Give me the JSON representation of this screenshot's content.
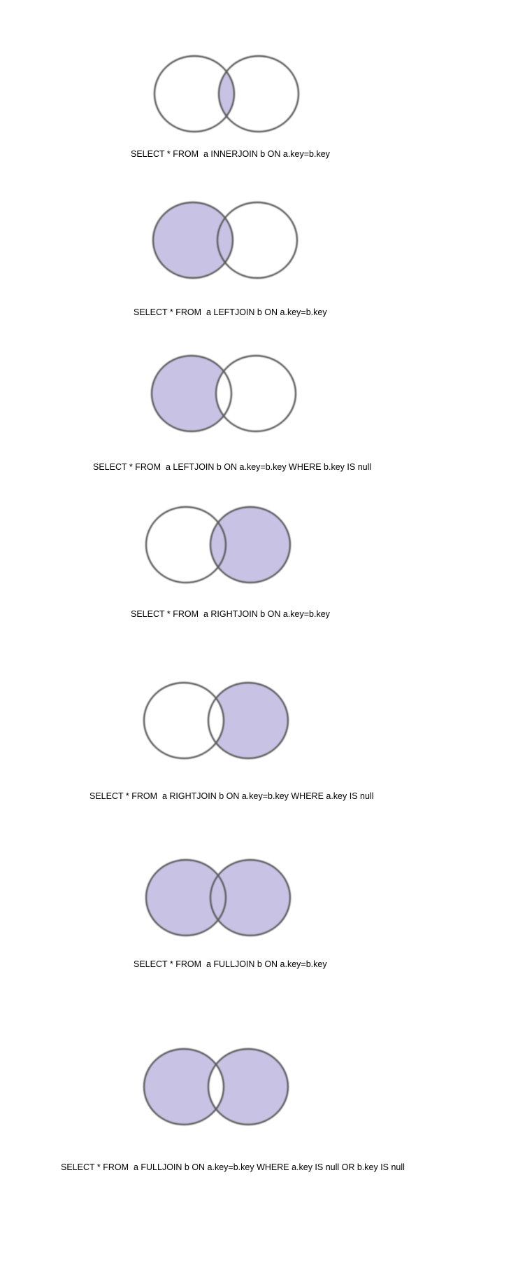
{
  "colors": {
    "fill": "#c8c3e5",
    "stroke": "#5a5a5a",
    "background": "#ffffff"
  },
  "diagrams": [
    {
      "caption": "SELECT * FROM  a INNERJOIN b ON a.key=b.key",
      "shaded": {
        "a_only": false,
        "overlap": true,
        "b_only": false
      }
    },
    {
      "caption": "SELECT * FROM  a LEFTJOIN b ON a.key=b.key",
      "shaded": {
        "a_only": true,
        "overlap": true,
        "b_only": false
      }
    },
    {
      "caption": "SELECT * FROM  a LEFTJOIN b ON a.key=b.key WHERE b.key IS null",
      "shaded": {
        "a_only": true,
        "overlap": false,
        "b_only": false
      }
    },
    {
      "caption": "SELECT * FROM  a RIGHTJOIN b ON a.key=b.key",
      "shaded": {
        "a_only": false,
        "overlap": true,
        "b_only": true
      }
    },
    {
      "caption": "SELECT * FROM  a RIGHTJOIN b ON a.key=b.key WHERE a.key IS null",
      "shaded": {
        "a_only": false,
        "overlap": false,
        "b_only": true
      }
    },
    {
      "caption": "SELECT * FROM  a FULLJOIN b ON a.key=b.key",
      "shaded": {
        "a_only": true,
        "overlap": true,
        "b_only": true
      }
    },
    {
      "caption": "SELECT * FROM  a FULLJOIN b ON a.key=b.key WHERE a.key IS null OR b.key IS null",
      "shaded": {
        "a_only": true,
        "overlap": false,
        "b_only": true
      }
    }
  ]
}
